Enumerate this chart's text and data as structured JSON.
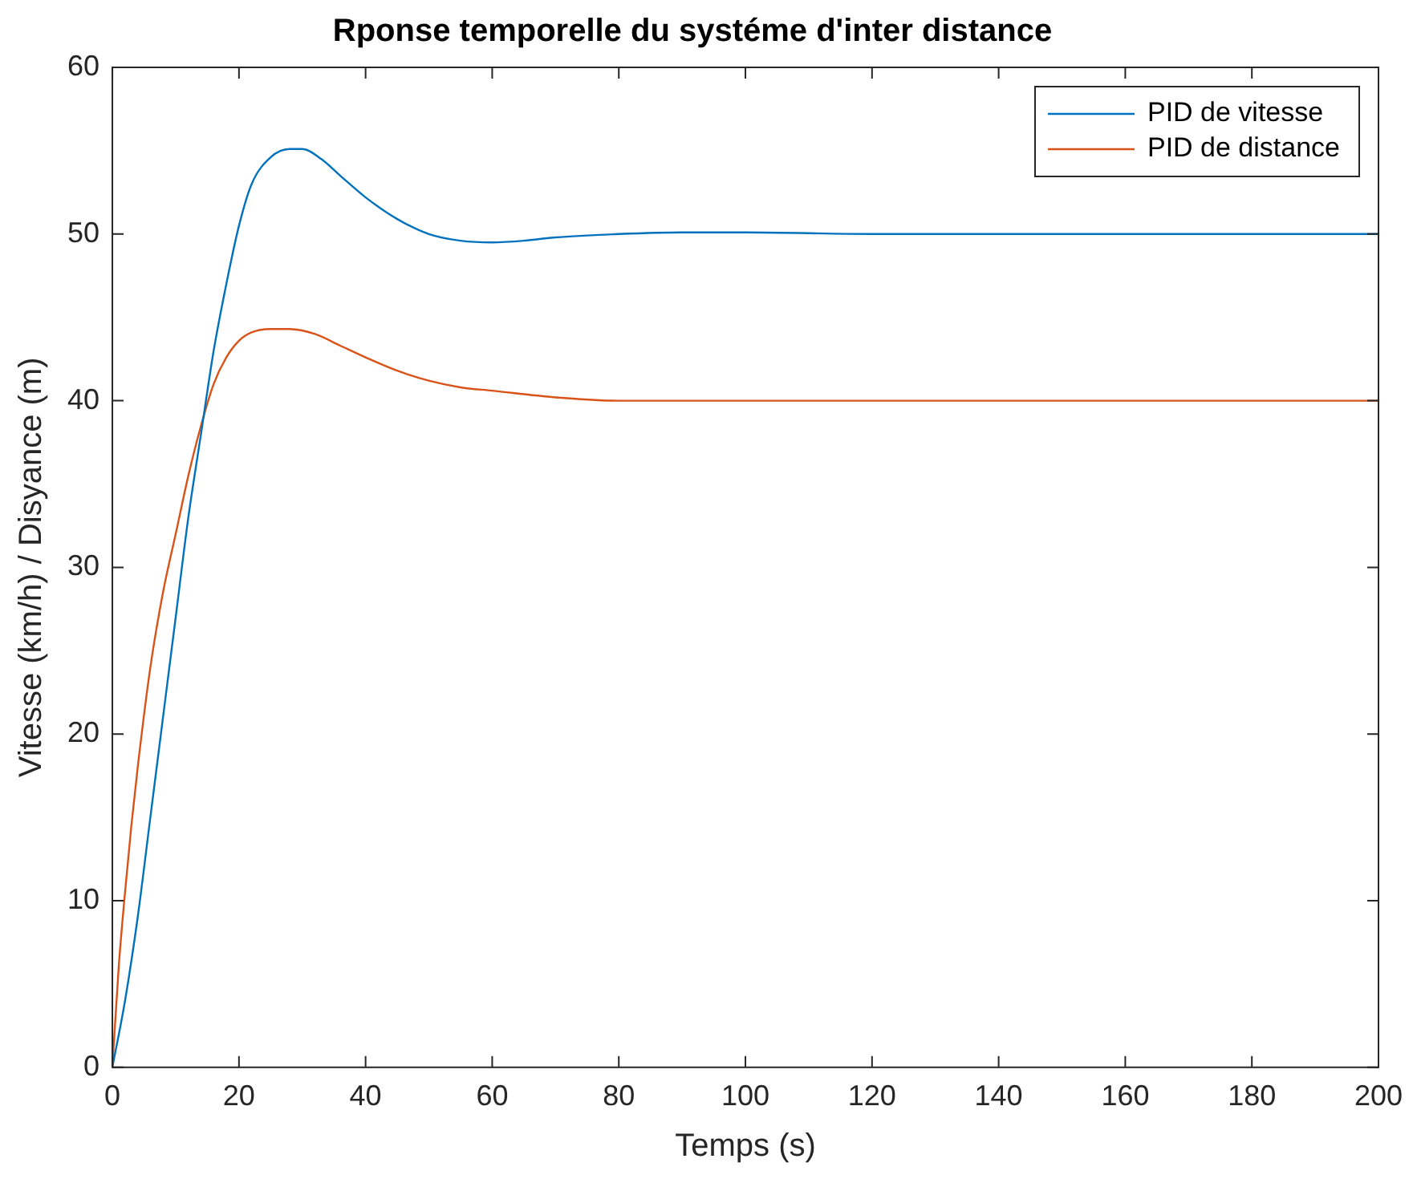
{
  "chart_data": {
    "type": "line",
    "title": "Rponse temporelle du systéme d'inter distance",
    "xlabel": "Temps (s)",
    "ylabel": "Vitesse (km/h) / Disyance (m)",
    "xlim": [
      0,
      200
    ],
    "xticks": [
      0,
      20,
      40,
      60,
      80,
      100,
      120,
      140,
      160,
      180,
      200
    ],
    "ylim": [
      0,
      60
    ],
    "yticks": [
      0,
      10,
      20,
      30,
      40,
      50,
      60
    ],
    "grid": false,
    "legend": "top right",
    "marker": "none",
    "line_style": "solid",
    "series": [
      {
        "name": "PID de vitesse",
        "color": "#0072bd",
        "x": [
          0,
          2,
          4,
          6,
          8,
          10,
          12,
          14,
          16,
          18,
          20,
          22,
          25,
          28,
          30,
          33,
          36,
          40,
          45,
          50,
          55,
          60,
          65,
          70,
          80,
          90,
          100,
          120,
          150,
          200
        ],
        "values": [
          0,
          4,
          9,
          15,
          21,
          27,
          33,
          38,
          43,
          47,
          50.5,
          53,
          54.6,
          55.1,
          55.1,
          54.5,
          53.5,
          52.2,
          50.9,
          50,
          49.6,
          49.5,
          49.6,
          49.8,
          50,
          50.1,
          50.1,
          50,
          50,
          50
        ]
      },
      {
        "name": "PID de distance",
        "color": "#d95319",
        "x": [
          0,
          1,
          2,
          3,
          4,
          6,
          8,
          10,
          12,
          14,
          16,
          18,
          20,
          22,
          25,
          28,
          32,
          36,
          40,
          45,
          50,
          55,
          60,
          70,
          80,
          90,
          100,
          150,
          200
        ],
        "values": [
          0,
          6,
          10.5,
          14.5,
          18,
          24,
          28.5,
          32,
          35.5,
          38.5,
          41,
          42.6,
          43.6,
          44.1,
          44.3,
          44.3,
          44,
          43.3,
          42.6,
          41.8,
          41.2,
          40.8,
          40.6,
          40.2,
          40,
          40,
          40,
          40,
          40
        ]
      }
    ]
  }
}
